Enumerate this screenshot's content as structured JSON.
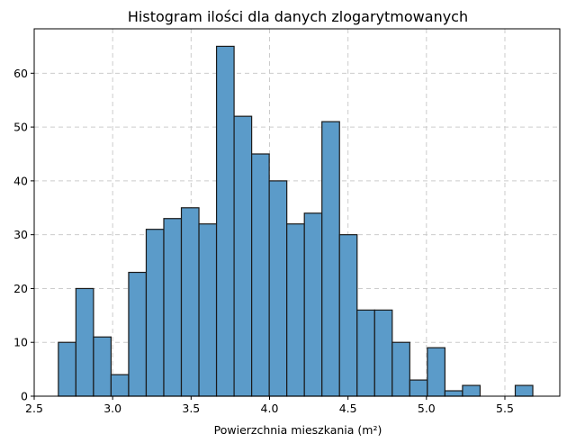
{
  "chart_data": {
    "type": "bar",
    "title": "Histogram ilości dla danych zlogarytmowanych",
    "xlabel": "Powierzchnia mieszkania (m²)",
    "ylabel": "",
    "xlim": [
      2.5,
      5.85
    ],
    "ylim": [
      0,
      68.25
    ],
    "grid": true,
    "bar_color": "#5b9bc9",
    "edge_color": "#1a1a1a",
    "grid_color": "#cccccc",
    "bins": [
      {
        "x0": 2.654,
        "x1": 2.766,
        "count": 10
      },
      {
        "x0": 2.766,
        "x1": 2.878,
        "count": 20
      },
      {
        "x0": 2.878,
        "x1": 2.99,
        "count": 11
      },
      {
        "x0": 2.99,
        "x1": 3.102,
        "count": 4
      },
      {
        "x0": 3.102,
        "x1": 3.214,
        "count": 23
      },
      {
        "x0": 3.214,
        "x1": 3.326,
        "count": 31
      },
      {
        "x0": 3.326,
        "x1": 3.438,
        "count": 33
      },
      {
        "x0": 3.438,
        "x1": 3.55,
        "count": 35
      },
      {
        "x0": 3.55,
        "x1": 3.662,
        "count": 32
      },
      {
        "x0": 3.662,
        "x1": 3.774,
        "count": 65
      },
      {
        "x0": 3.774,
        "x1": 3.886,
        "count": 52
      },
      {
        "x0": 3.886,
        "x1": 3.998,
        "count": 45
      },
      {
        "x0": 3.998,
        "x1": 4.11,
        "count": 40
      },
      {
        "x0": 4.11,
        "x1": 4.222,
        "count": 32
      },
      {
        "x0": 4.222,
        "x1": 4.334,
        "count": 34
      },
      {
        "x0": 4.334,
        "x1": 4.446,
        "count": 51
      },
      {
        "x0": 4.446,
        "x1": 4.558,
        "count": 30
      },
      {
        "x0": 4.558,
        "x1": 4.67,
        "count": 16
      },
      {
        "x0": 4.67,
        "x1": 4.782,
        "count": 16
      },
      {
        "x0": 4.782,
        "x1": 4.894,
        "count": 10
      },
      {
        "x0": 4.894,
        "x1": 5.006,
        "count": 3
      },
      {
        "x0": 5.006,
        "x1": 5.118,
        "count": 9
      },
      {
        "x0": 5.118,
        "x1": 5.23,
        "count": 1
      },
      {
        "x0": 5.23,
        "x1": 5.342,
        "count": 2
      },
      {
        "x0": 5.342,
        "x1": 5.454,
        "count": 0
      },
      {
        "x0": 5.454,
        "x1": 5.566,
        "count": 0
      },
      {
        "x0": 5.566,
        "x1": 5.678,
        "count": 2
      }
    ],
    "x_ticks": [
      "2.5",
      "3.0",
      "3.5",
      "4.0",
      "4.5",
      "5.0",
      "5.5"
    ],
    "y_ticks": [
      "0",
      "10",
      "20",
      "30",
      "40",
      "50",
      "60"
    ]
  }
}
